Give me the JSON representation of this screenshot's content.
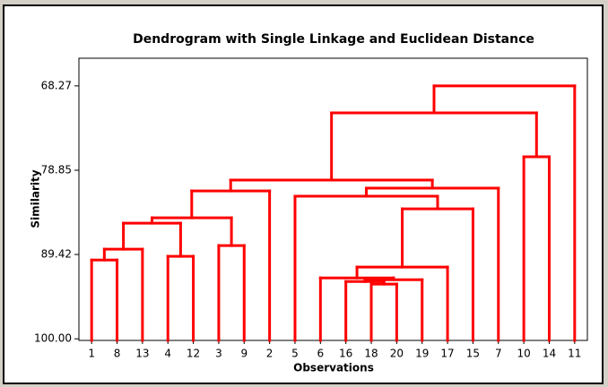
{
  "chart_data": {
    "type": "dendrogram",
    "title": "Dendrogram with Single Linkage and Euclidean Distance",
    "xlabel": "Observations",
    "ylabel": "Similarity",
    "categories": [
      "1",
      "8",
      "13",
      "4",
      "12",
      "3",
      "9",
      "2",
      "5",
      "6",
      "16",
      "18",
      "20",
      "19",
      "17",
      "15",
      "7",
      "10",
      "14",
      "11"
    ],
    "merges": [
      {
        "children": [
          0,
          1
        ],
        "similarity": 90.11
      },
      {
        "children": [
          20,
          2
        ],
        "similarity": 88.75
      },
      {
        "children": [
          3,
          4
        ],
        "similarity": 89.65
      },
      {
        "children": [
          21,
          22
        ],
        "similarity": 85.49
      },
      {
        "children": [
          5,
          6
        ],
        "similarity": 88.3
      },
      {
        "children": [
          23,
          24
        ],
        "similarity": 84.82
      },
      {
        "children": [
          25,
          7
        ],
        "similarity": 81.44
      },
      {
        "children": [
          11,
          12
        ],
        "similarity": 93.14
      },
      {
        "children": [
          10,
          27
        ],
        "similarity": 92.81
      },
      {
        "children": [
          28,
          13
        ],
        "similarity": 92.58
      },
      {
        "children": [
          9,
          29
        ],
        "similarity": 92.36
      },
      {
        "children": [
          30,
          14
        ],
        "similarity": 91.0
      },
      {
        "children": [
          31,
          15
        ],
        "similarity": 83.69
      },
      {
        "children": [
          8,
          32
        ],
        "similarity": 82.11
      },
      {
        "children": [
          33,
          16
        ],
        "similarity": 81.1
      },
      {
        "children": [
          26,
          34
        ],
        "similarity": 80.09
      },
      {
        "children": [
          17,
          18
        ],
        "similarity": 77.16
      },
      {
        "children": [
          35,
          36
        ],
        "similarity": 71.65
      },
      {
        "children": [
          37,
          19
        ],
        "similarity": 68.27
      }
    ],
    "color": "#ff0000",
    "ylim": [
      100.2,
      64.8
    ],
    "yticks": [
      68.27,
      78.85,
      89.42,
      {
        "value": 100,
        "label": "100.00"
      }
    ]
  }
}
